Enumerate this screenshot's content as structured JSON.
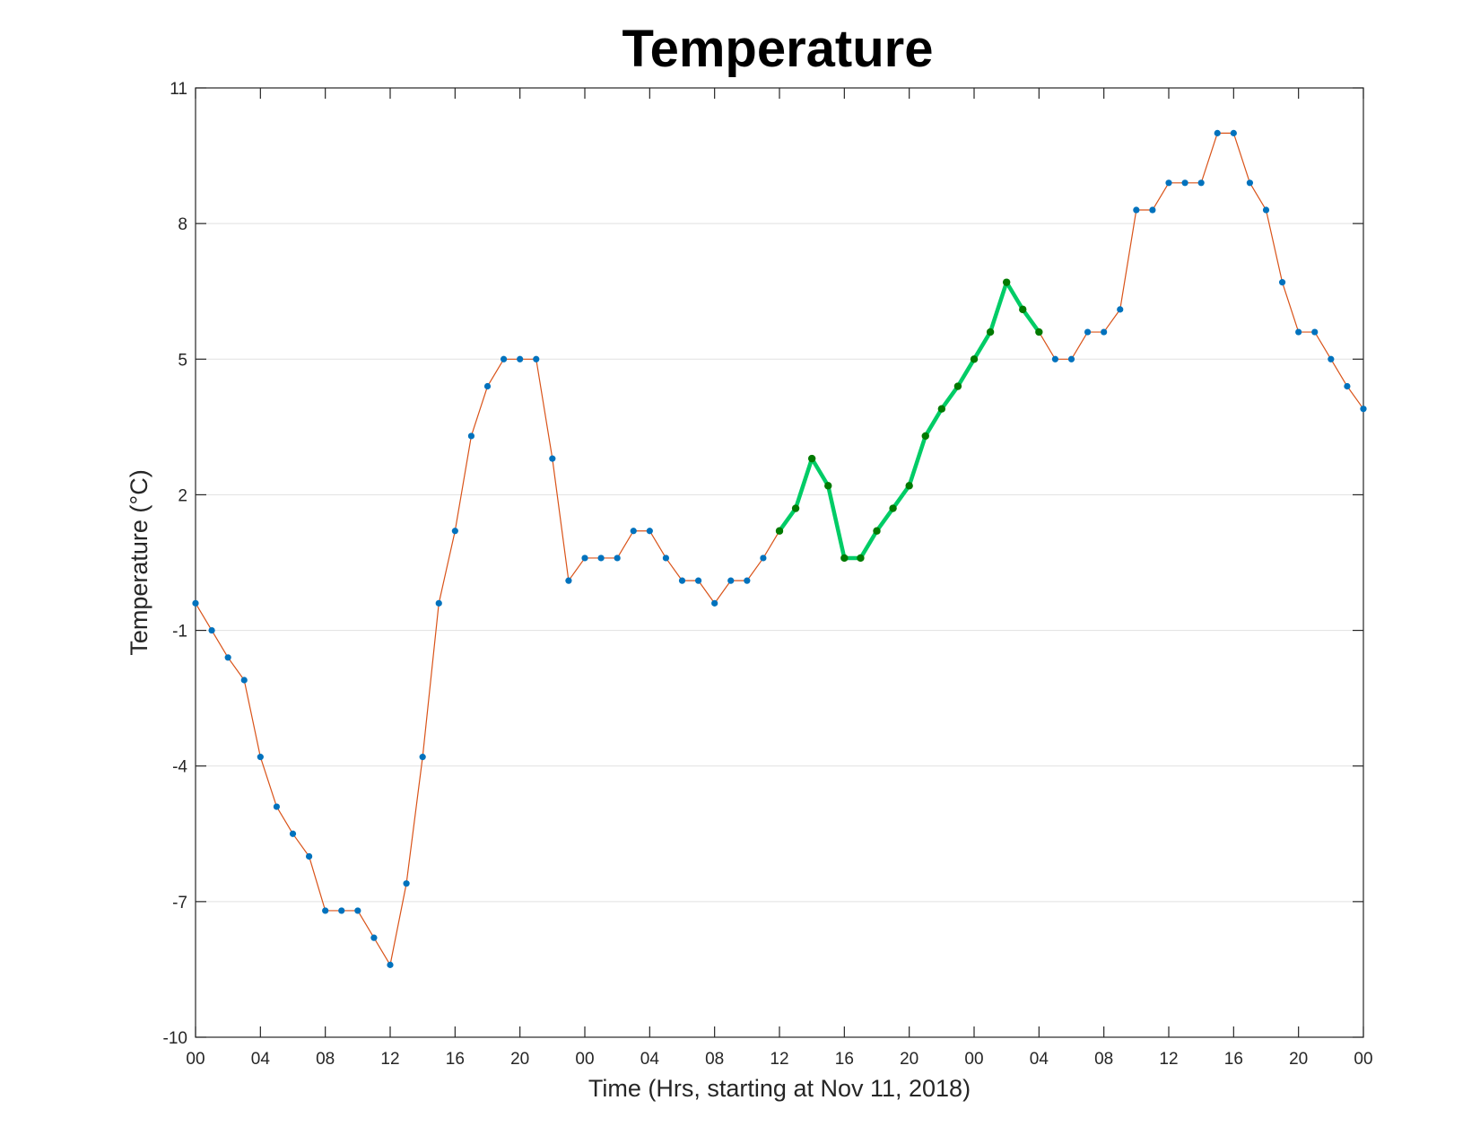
{
  "chart_data": {
    "type": "line",
    "title": "Temperature",
    "xlabel": "Time (Hrs, starting at Nov 11, 2018)",
    "ylabel": "Temperature (°C)",
    "xlim": [
      0,
      72
    ],
    "ylim": [
      -10,
      11
    ],
    "grid": "horizontal",
    "legend": "none",
    "x_tick_positions": [
      0,
      4,
      8,
      12,
      16,
      20,
      24,
      28,
      32,
      36,
      40,
      44,
      48,
      52,
      56,
      60,
      64,
      68,
      72
    ],
    "x_tick_labels": [
      "00",
      "04",
      "08",
      "12",
      "16",
      "20",
      "00",
      "04",
      "08",
      "12",
      "16",
      "20",
      "00",
      "04",
      "08",
      "12",
      "16",
      "20",
      "00"
    ],
    "y_ticks": [
      -10,
      -7,
      -4,
      -1,
      2,
      5,
      8,
      11
    ],
    "y_tick_labels": [
      "-10",
      "-7",
      "-4",
      "-1",
      "2",
      "5",
      "8",
      "11"
    ],
    "series": [
      {
        "x": [
          0,
          1,
          2,
          3,
          4,
          5,
          6,
          7,
          8,
          9,
          10,
          11,
          12,
          13,
          14,
          15,
          16,
          17,
          18,
          19,
          20,
          21,
          22,
          23,
          24,
          25,
          26,
          27,
          28,
          29,
          30,
          31,
          32,
          33,
          34,
          35,
          36,
          37,
          38,
          39,
          40,
          41,
          42,
          43,
          44,
          45,
          46,
          47,
          48,
          49,
          50,
          51,
          52,
          53,
          54,
          55,
          56,
          57,
          58,
          59,
          60,
          61,
          62,
          63,
          64,
          65,
          66,
          67,
          68,
          69,
          70,
          71,
          72
        ],
        "values": [
          -0.4,
          -1.0,
          -1.6,
          -2.1,
          -3.8,
          -4.9,
          -5.5,
          -6.0,
          -7.2,
          -7.2,
          -7.2,
          -7.8,
          -8.4,
          -6.6,
          -3.8,
          -0.4,
          1.2,
          3.3,
          4.4,
          5.0,
          5.0,
          5.0,
          2.8,
          0.1,
          0.6,
          0.6,
          0.6,
          1.2,
          1.2,
          0.6,
          0.1,
          0.1,
          -0.4,
          0.1,
          0.1,
          0.6,
          1.2,
          1.7,
          2.8,
          2.2,
          0.6,
          0.6,
          1.2,
          1.7,
          2.2,
          3.3,
          3.9,
          4.4,
          5.0,
          5.6,
          6.7,
          6.1,
          5.6,
          5.0,
          5.0,
          5.6,
          5.6,
          6.1,
          8.3,
          8.3,
          8.9,
          8.9,
          8.9,
          10.0,
          10.0,
          8.9,
          8.3,
          6.7,
          5.6,
          5.6,
          5.0,
          4.4,
          3.9
        ],
        "line_color": "#D95319",
        "marker_color": "#0072BD"
      },
      {
        "x": [
          36,
          37,
          38,
          39,
          40,
          41,
          42,
          43,
          44,
          45,
          46,
          47,
          48,
          49,
          50,
          51,
          52
        ],
        "values": [
          1.2,
          1.7,
          2.8,
          2.2,
          0.6,
          0.6,
          1.2,
          1.7,
          2.2,
          3.3,
          3.9,
          4.4,
          5.0,
          5.6,
          6.7,
          6.1,
          5.6
        ],
        "line_color": "#00CC66",
        "marker_color": "#007A00"
      }
    ]
  }
}
